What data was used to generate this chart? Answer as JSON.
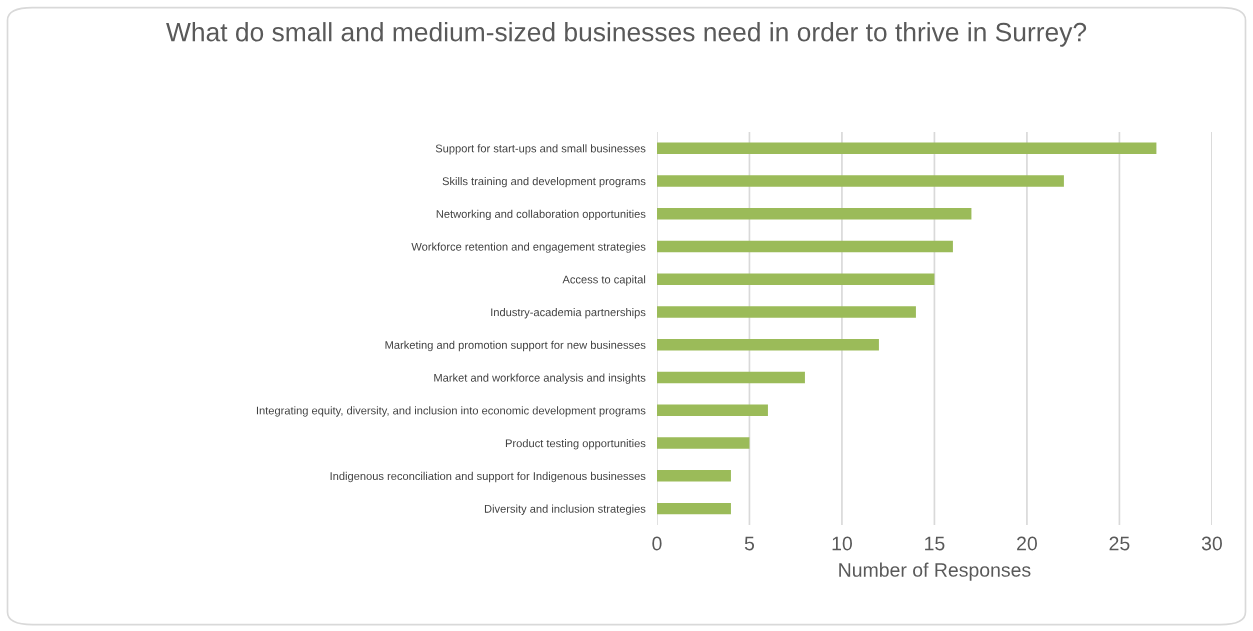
{
  "chart_data": {
    "type": "bar",
    "orientation": "horizontal",
    "title": "What do small and medium-sized businesses need in order to thrive in Surrey?",
    "xlabel": "Number of Responses",
    "categories": [
      "Support for start-ups and small businesses",
      "Skills training and development programs",
      "Networking and collaboration opportunities",
      "Workforce retention and engagement strategies",
      "Access to capital",
      "Industry-academia partnerships",
      "Marketing and promotion support for new businesses",
      "Market and workforce analysis and insights",
      "Integrating equity, diversity, and inclusion into economic development programs",
      "Product testing opportunities",
      "Indigenous reconciliation and support for Indigenous businesses",
      "Diversity and inclusion strategies"
    ],
    "values": [
      27,
      22,
      17,
      16,
      15,
      14,
      12,
      8,
      6,
      5,
      4,
      4
    ],
    "color": "#9bbb59",
    "xlim": [
      0,
      30
    ],
    "xticks": [
      0,
      5,
      10,
      15,
      20,
      25,
      30
    ],
    "grid": "x",
    "legend": false
  }
}
